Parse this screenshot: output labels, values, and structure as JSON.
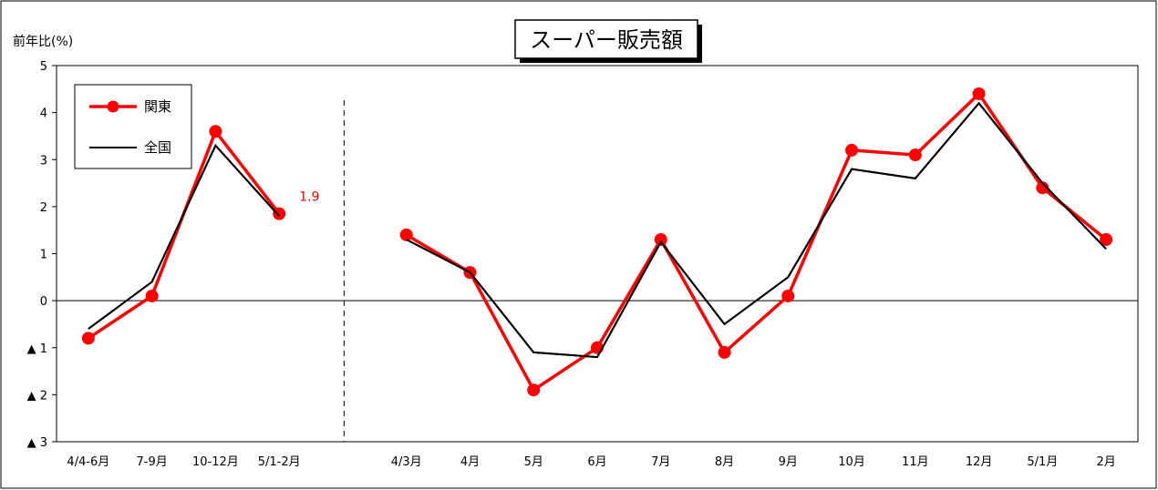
{
  "chart_data": {
    "type": "line",
    "title": "スーパー販売額",
    "ylabel": "前年比(%)",
    "ylim": [
      -3,
      5
    ],
    "yticks": [
      {
        "value": 5,
        "label": "5"
      },
      {
        "value": 4,
        "label": "4"
      },
      {
        "value": 3,
        "label": "3"
      },
      {
        "value": 2,
        "label": "2"
      },
      {
        "value": 1,
        "label": "1"
      },
      {
        "value": 0,
        "label": "0"
      },
      {
        "value": -1,
        "label": "▲ 1"
      },
      {
        "value": -2,
        "label": "▲ 2"
      },
      {
        "value": -3,
        "label": "▲ 3"
      }
    ],
    "categories": [
      "4/4-6月",
      "7-9月",
      "10-12月",
      "5/1-2月",
      "",
      "4/3月",
      "4月",
      "5月",
      "6月",
      "7月",
      "8月",
      "9月",
      "10月",
      "11月",
      "12月",
      "5/1月",
      "2月"
    ],
    "legend_position": "top-left",
    "grid": false,
    "segments": [
      {
        "start": 0,
        "end": 3
      },
      {
        "start": 5,
        "end": 16
      }
    ],
    "divider_after_index": 4,
    "series": [
      {
        "name": "関東",
        "color": "#ff0000",
        "marker": "circle",
        "values": [
          -0.8,
          0.1,
          3.6,
          1.85,
          null,
          1.4,
          0.6,
          -1.9,
          -1.0,
          1.3,
          -1.1,
          0.1,
          3.2,
          3.1,
          4.4,
          2.4,
          1.3
        ]
      },
      {
        "name": "全国",
        "color": "#000000",
        "marker": "none",
        "values": [
          -0.6,
          0.4,
          3.3,
          1.8,
          null,
          1.3,
          0.6,
          -1.1,
          -1.2,
          1.25,
          -0.5,
          0.5,
          2.8,
          2.6,
          4.2,
          2.5,
          1.1
        ]
      }
    ],
    "annotations": [
      {
        "text": "1.9",
        "category_index": 3,
        "value": 1.85,
        "color": "#ff0000"
      }
    ]
  }
}
